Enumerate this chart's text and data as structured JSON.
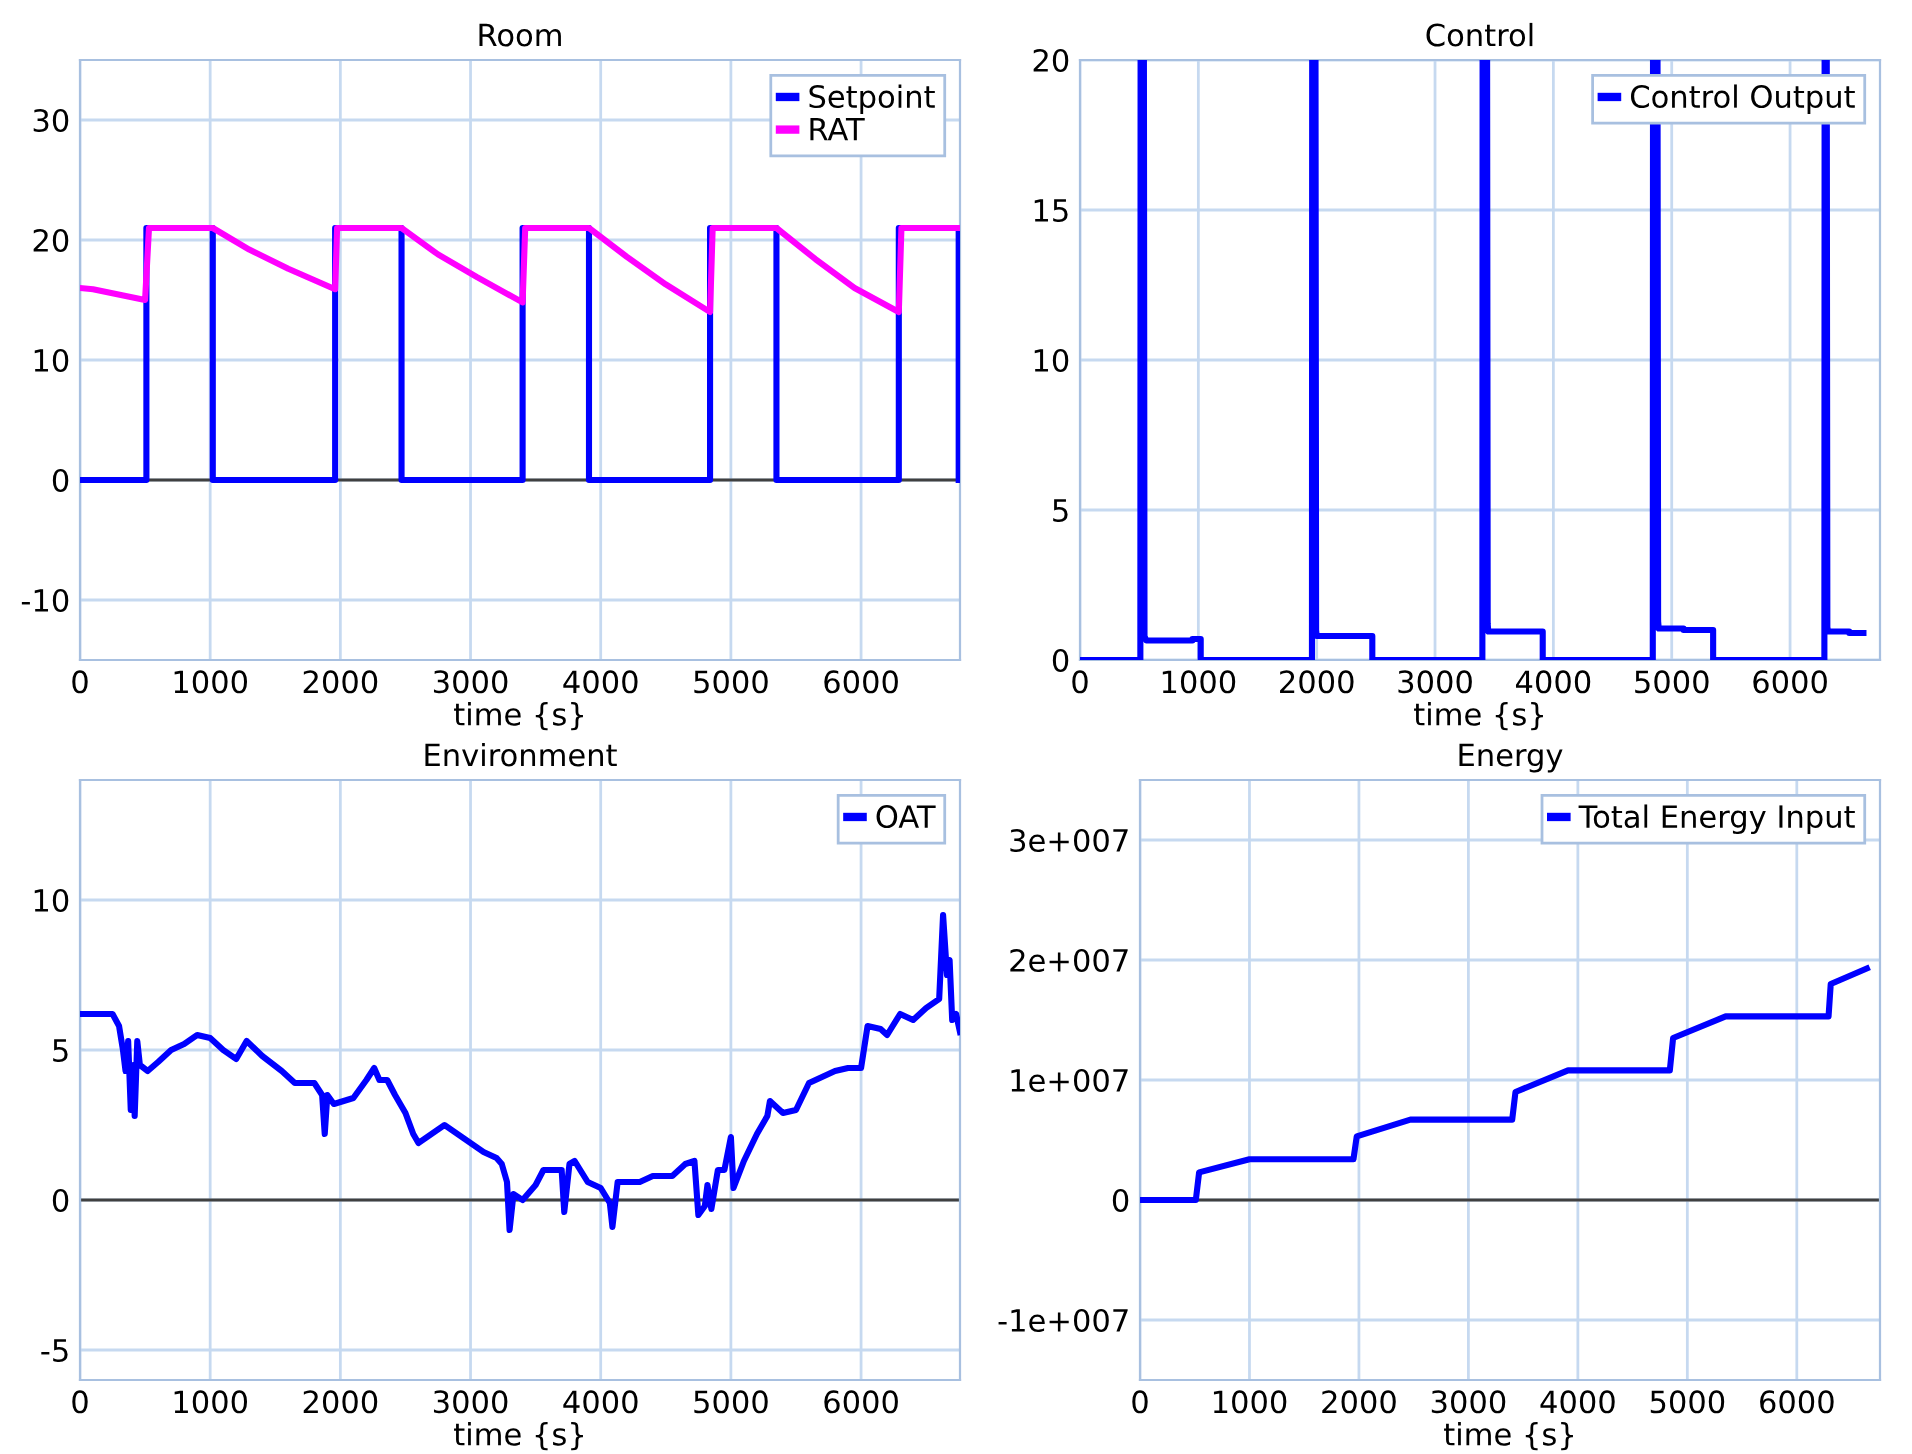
{
  "chart_data": [
    {
      "type": "line",
      "title": "Room",
      "xlabel": "time {s}",
      "xlim": [
        0,
        6760
      ],
      "xticks": [
        0,
        1000,
        2000,
        3000,
        4000,
        5000,
        6000
      ],
      "ylim": [
        -15,
        35
      ],
      "yticks": [
        -10,
        0,
        10,
        20,
        30
      ],
      "grid": true,
      "legend": "top right",
      "line_style": "solid",
      "ref_lines": [
        {
          "axis": "y",
          "value": 0,
          "color": "#404040"
        }
      ],
      "series": [
        {
          "name": "Setpoint",
          "color": "#0000ff",
          "x": [
            0,
            510,
            510,
            1020,
            1020,
            1960,
            1960,
            2470,
            2470,
            3400,
            3400,
            3910,
            3910,
            4840,
            4840,
            5350,
            5350,
            6290,
            6290,
            6750,
            6750
          ],
          "values": [
            0,
            0,
            21,
            21,
            0,
            0,
            21,
            21,
            0,
            0,
            21,
            21,
            0,
            0,
            21,
            21,
            0,
            0,
            21,
            21,
            0
          ]
        },
        {
          "name": "RAT",
          "color": "#ff00ff",
          "x": [
            0,
            100,
            500,
            530,
            1020,
            1300,
            1600,
            1960,
            1975,
            2470,
            2750,
            3050,
            3400,
            3420,
            3910,
            4200,
            4500,
            4840,
            4860,
            5350,
            5650,
            5950,
            6290,
            6310,
            6760
          ],
          "values": [
            16,
            15.9,
            15,
            21,
            21,
            19.2,
            17.6,
            15.9,
            21,
            21,
            18.8,
            16.9,
            14.8,
            21,
            21,
            18.6,
            16.3,
            14,
            21,
            21,
            18.4,
            16,
            14,
            21,
            21
          ]
        }
      ]
    },
    {
      "type": "line",
      "title": "Control",
      "xlabel": "time {s}",
      "xlim": [
        0,
        6760
      ],
      "xticks": [
        0,
        1000,
        2000,
        3000,
        4000,
        5000,
        6000
      ],
      "ylim": [
        0,
        20
      ],
      "yticks": [
        0,
        5,
        10,
        15,
        20
      ],
      "grid": true,
      "legend": "top right",
      "line_style": "solid",
      "series": [
        {
          "name": "Control Output",
          "color": "#0000ff",
          "x": [
            0,
            510,
            512,
            540,
            545,
            560,
            950,
            950,
            1020,
            1020,
            1960,
            1962,
            1990,
            1995,
            2000,
            2470,
            2470,
            3400,
            3402,
            3440,
            3445,
            3450,
            3910,
            3910,
            4840,
            4842,
            4880,
            4885,
            4890,
            5100,
            5100,
            5350,
            5350,
            6290,
            6292,
            6310,
            6315,
            6320,
            6500,
            6500,
            6620
          ],
          "values": [
            0,
            0,
            20,
            20,
            0.8,
            0.65,
            0.65,
            0.7,
            0.7,
            0,
            0,
            20,
            20,
            1.0,
            0.8,
            0.8,
            0,
            0,
            20,
            20,
            1.2,
            0.95,
            0.95,
            0,
            0,
            20,
            20,
            1.3,
            1.05,
            1.05,
            1.0,
            1.0,
            0,
            0,
            20,
            20,
            1.1,
            0.95,
            0.95,
            0.9,
            0.9
          ]
        }
      ]
    },
    {
      "type": "line",
      "title": "Environment",
      "xlabel": "time {s}",
      "xlim": [
        0,
        6760
      ],
      "xticks": [
        0,
        1000,
        2000,
        3000,
        4000,
        5000,
        6000
      ],
      "ylim": [
        -6,
        14
      ],
      "yticks": [
        -5,
        0,
        5,
        10
      ],
      "grid": true,
      "legend": "top right",
      "line_style": "solid",
      "ref_lines": [
        {
          "axis": "y",
          "value": 0,
          "color": "#404040"
        }
      ],
      "series": [
        {
          "name": "OAT",
          "color": "#0000ff",
          "x": [
            0,
            100,
            250,
            300,
            330,
            350,
            370,
            390,
            410,
            420,
            440,
            460,
            520,
            600,
            700,
            800,
            900,
            1000,
            1100,
            1200,
            1280,
            1400,
            1550,
            1650,
            1800,
            1860,
            1880,
            1900,
            1950,
            2100,
            2200,
            2260,
            2300,
            2360,
            2420,
            2500,
            2560,
            2600,
            2700,
            2800,
            2900,
            3000,
            3100,
            3200,
            3240,
            3280,
            3300,
            3330,
            3400,
            3500,
            3560,
            3700,
            3720,
            3760,
            3800,
            3900,
            4000,
            4070,
            4090,
            4130,
            4300,
            4400,
            4550,
            4650,
            4720,
            4750,
            4800,
            4820,
            4850,
            4900,
            4950,
            5000,
            5020,
            5100,
            5200,
            5280,
            5300,
            5400,
            5500,
            5600,
            5800,
            5900,
            6000,
            6050,
            6150,
            6200,
            6300,
            6400,
            6500,
            6600,
            6630,
            6660,
            6680,
            6700,
            6730,
            6760
          ],
          "values": [
            6.2,
            6.2,
            6.2,
            5.8,
            5,
            4.3,
            5.3,
            3,
            4.5,
            2.8,
            5.3,
            4.5,
            4.3,
            4.6,
            5.0,
            5.2,
            5.5,
            5.4,
            5.0,
            4.7,
            5.3,
            4.8,
            4.3,
            3.9,
            3.9,
            3.5,
            2.2,
            3.5,
            3.2,
            3.4,
            4.0,
            4.4,
            4.0,
            4.0,
            3.5,
            2.9,
            2.2,
            1.9,
            2.2,
            2.5,
            2.2,
            1.9,
            1.6,
            1.4,
            1.2,
            0.6,
            -1.0,
            0.2,
            0,
            0.5,
            1.0,
            1.0,
            -0.4,
            1.2,
            1.3,
            0.6,
            0.4,
            -0.1,
            -0.9,
            0.6,
            0.6,
            0.8,
            0.8,
            1.2,
            1.3,
            -0.5,
            -0.2,
            0.5,
            -0.3,
            1.0,
            1.0,
            2.1,
            0.4,
            1.3,
            2.2,
            2.8,
            3.3,
            2.9,
            3.0,
            3.9,
            4.3,
            4.4,
            4.4,
            5.8,
            5.7,
            5.5,
            6.2,
            6.0,
            6.4,
            6.7,
            9.5,
            7.5,
            8.0,
            6.0,
            6.2,
            5.6
          ]
        }
      ]
    },
    {
      "type": "line",
      "title": "Energy",
      "xlabel": "time {s}",
      "xlim": [
        0,
        6760
      ],
      "xticks": [
        0,
        1000,
        2000,
        3000,
        4000,
        5000,
        6000
      ],
      "ylim": [
        -15000000,
        35000000
      ],
      "yticks": [
        {
          "value": -10000000,
          "label": "-1e+007"
        },
        0,
        {
          "value": 10000000,
          "label": "1e+007"
        },
        {
          "value": 20000000,
          "label": "2e+007"
        },
        {
          "value": 30000000,
          "label": "3e+007"
        }
      ],
      "grid": true,
      "legend": "top right",
      "line_style": "solid",
      "ref_lines": [
        {
          "axis": "y",
          "value": 0,
          "color": "#404040"
        }
      ],
      "series": [
        {
          "name": "Total Energy Input",
          "color": "#0000ff",
          "x": [
            0,
            510,
            540,
            1000,
            1950,
            1980,
            2470,
            3400,
            3430,
            3910,
            4840,
            4870,
            5350,
            6290,
            6310,
            6640
          ],
          "values": [
            0,
            0,
            2300000,
            3400000,
            3400000,
            5300000,
            6700000,
            6700000,
            9000000,
            10800000,
            10800000,
            13500000,
            15300000,
            15300000,
            18000000,
            19300000
          ]
        }
      ]
    }
  ]
}
